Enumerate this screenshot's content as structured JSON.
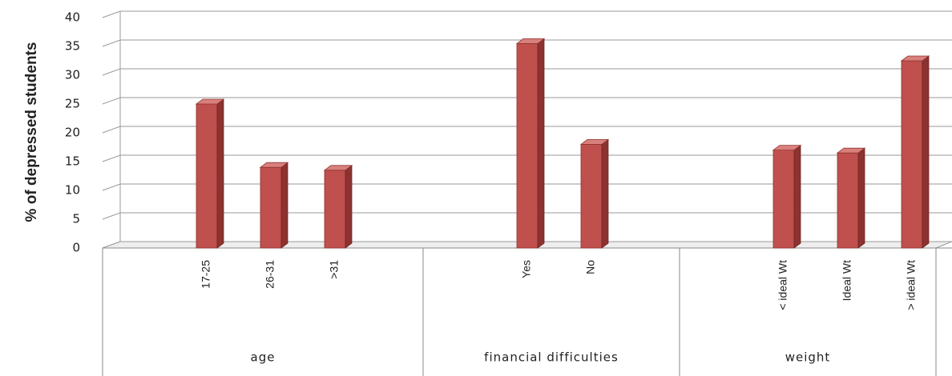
{
  "chart_data": {
    "type": "bar",
    "y_label": "% of depressed students",
    "color": "#c0504d",
    "ylim": [
      0,
      40
    ],
    "yticks": [
      0,
      5,
      10,
      15,
      20,
      25,
      30,
      35,
      40
    ],
    "grid": true,
    "groups": [
      {
        "name": "age",
        "categories": [
          null,
          "17-25",
          "26-31",
          ">31",
          null
        ],
        "values": [
          null,
          25,
          14,
          13.5,
          null
        ]
      },
      {
        "name": "financial difficulties",
        "categories": [
          null,
          "Yes",
          "No",
          null
        ],
        "values": [
          null,
          35.5,
          18,
          null
        ]
      },
      {
        "name": "weight",
        "categories": [
          null,
          "< ideal Wt",
          "Ideal Wt",
          "> ideal Wt"
        ],
        "values": [
          null,
          17,
          16.5,
          32.5
        ]
      }
    ]
  }
}
